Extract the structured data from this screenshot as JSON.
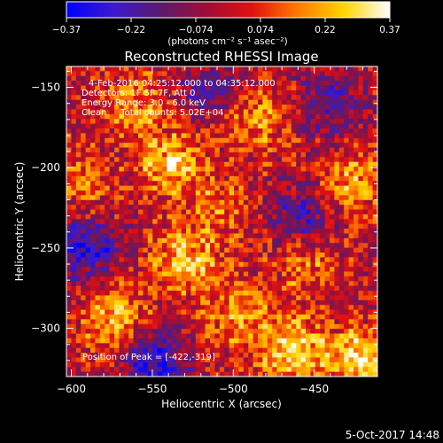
{
  "colorbar": {
    "ticks": [
      "-0.37",
      "-0.22",
      "-0.074",
      "0.074",
      "0.22",
      "0.37"
    ],
    "units": "(photons cm⁻² s⁻¹ asec⁻²)",
    "range": [
      -0.37,
      0.37
    ],
    "palette": [
      "#0000ff",
      "#3a1acc",
      "#5a1a6e",
      "#9a0f3a",
      "#e01010",
      "#ff7a00",
      "#ffd400",
      "#ffffff"
    ]
  },
  "chart_data": {
    "type": "heatmap",
    "title": "Reconstructed RHESSI Image",
    "xlabel": "Heliocentric X (arcsec)",
    "ylabel": "Heliocentric Y (arcsec)",
    "xlim": [
      -603,
      -411
    ],
    "ylim": [
      -330,
      -137
    ],
    "x_ticks": [
      -600,
      -550,
      -500,
      -450
    ],
    "y_ticks": [
      -150,
      -200,
      -250,
      -300
    ],
    "x_tick_labels": [
      "−600",
      "−550",
      "−500",
      "−450"
    ],
    "y_tick_labels": [
      "−150",
      "−200",
      "−250",
      "−300"
    ],
    "grid_cells": [
      65,
      65
    ],
    "hotspots": [
      {
        "x": -538,
        "y": -197,
        "intensity": 0.25
      },
      {
        "x": -530,
        "y": -258,
        "intensity": 0.26
      },
      {
        "x": -575,
        "y": -293,
        "intensity": 0.24
      },
      {
        "x": -498,
        "y": -291,
        "intensity": 0.2
      },
      {
        "x": -464,
        "y": -312,
        "intensity": 0.28
      },
      {
        "x": -560,
        "y": -160,
        "intensity": 0.18
      },
      {
        "x": -484,
        "y": -170,
        "intensity": 0.17
      },
      {
        "x": -425,
        "y": -210,
        "intensity": 0.22
      },
      {
        "x": -510,
        "y": -225,
        "intensity": 0.14
      },
      {
        "x": -595,
        "y": -210,
        "intensity": 0.15
      },
      {
        "x": -455,
        "y": -260,
        "intensity": 0.16
      },
      {
        "x": -422,
        "y": -319,
        "intensity": 0.3
      }
    ],
    "coldspots": [
      {
        "x": -590,
        "y": -250,
        "intensity": -0.28
      },
      {
        "x": -548,
        "y": -322,
        "intensity": -0.3
      },
      {
        "x": -458,
        "y": -232,
        "intensity": -0.22
      },
      {
        "x": -515,
        "y": -150,
        "intensity": -0.18
      },
      {
        "x": -440,
        "y": -160,
        "intensity": -0.2
      }
    ],
    "annotations": [
      "4-Feb-2016 04:25:12.000 to 04:35:12.000",
      "Detectors: 1F 5F 7F, Att 0",
      "Energy Range: 3.0 - 6.0 keV",
      "Clean     Total counts: 5.02E+04"
    ],
    "peak_label": "Position of Peak = [-422,-319]"
  },
  "timestamp": "5-Oct-2017 14:48"
}
